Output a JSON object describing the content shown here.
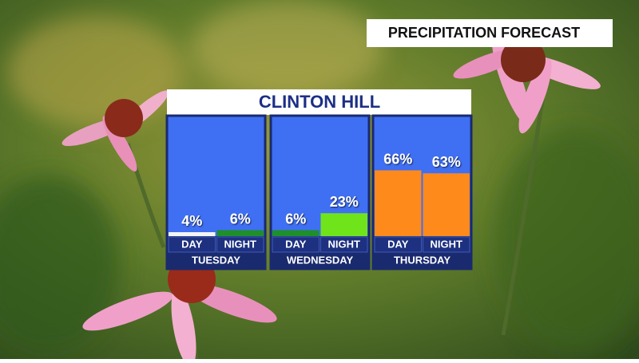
{
  "header": "PRECIPITATION FORECAST",
  "chart_data": {
    "type": "bar",
    "title": "CLINTON HILL",
    "ylim": [
      0,
      100
    ],
    "groups": [
      {
        "name": "TUESDAY",
        "categories": [
          "DAY",
          "NIGHT"
        ],
        "values": [
          4,
          6
        ],
        "value_labels": [
          "4%",
          "6%"
        ],
        "colors": [
          "#f4f4f4",
          "#1e8f2a"
        ]
      },
      {
        "name": "WEDNESDAY",
        "categories": [
          "DAY",
          "NIGHT"
        ],
        "values": [
          6,
          23
        ],
        "value_labels": [
          "6%",
          "23%"
        ],
        "colors": [
          "#1e8f2a",
          "#6fe41b"
        ]
      },
      {
        "name": "THURSDAY",
        "categories": [
          "DAY",
          "NIGHT"
        ],
        "values": [
          66,
          63
        ],
        "value_labels": [
          "66%",
          "63%"
        ],
        "colors": [
          "#ff8a1c",
          "#ff8a1c"
        ]
      }
    ]
  }
}
